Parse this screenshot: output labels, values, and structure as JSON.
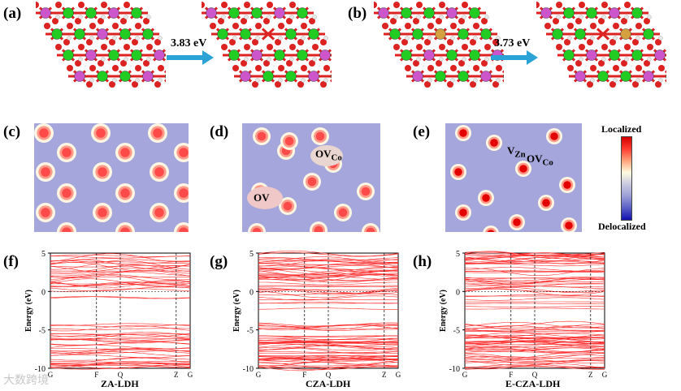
{
  "panels": {
    "a": "(a)",
    "b": "(b)",
    "c": "(c)",
    "d": "(d)",
    "e": "(e)",
    "f": "(f)",
    "g": "(g)",
    "h": "(h)"
  },
  "arrows": {
    "a_energy": "3.83 eV",
    "b_energy": "3.73 eV"
  },
  "elf": {
    "d_labels": [
      {
        "main": "OV",
        "sub": "Co"
      },
      {
        "main": "OV",
        "sub": ""
      }
    ],
    "e_labels": [
      {
        "main": "V",
        "sub": "Zn"
      },
      {
        "main": "OV",
        "sub": "Co"
      }
    ],
    "legend_top": "Localized",
    "legend_bottom": "Delocalized",
    "legend_colors": [
      "#d40000",
      "#ff3b30",
      "#ffa37a",
      "#fffbe0",
      "#c8c8e0",
      "#9a9ed6",
      "#5a5ec6",
      "#1010b0"
    ]
  },
  "bands": [
    {
      "caption": "ZA-LDH",
      "ylabel": "Energy (eV)",
      "ticks_y": [
        "5",
        "0",
        "-5",
        "-10"
      ],
      "ticks_x": [
        "G",
        "F",
        "Q",
        "Z",
        "G"
      ],
      "ylim": [
        -10,
        5
      ]
    },
    {
      "caption": "CZA-LDH",
      "ylabel": "Energy (eV)",
      "ticks_y": [
        "5",
        "0",
        "-5",
        "-10"
      ],
      "ticks_x": [
        "G",
        "F",
        "Q",
        "Z",
        "G"
      ],
      "ylim": [
        -10,
        5
      ]
    },
    {
      "caption": "E-CZA-LDH",
      "ylabel": "Energy (eV)",
      "ticks_y": [
        "5",
        "0",
        "-5",
        "-10"
      ],
      "ticks_x": [
        "G",
        "F",
        "Q",
        "Z",
        "G"
      ],
      "ylim": [
        -10,
        5
      ]
    }
  ],
  "watermark": "大数跨境",
  "colors": {
    "line": "#ff2a2a",
    "zn": "#22cc22",
    "al": "#cc55cc",
    "o": "#dd2222",
    "h": "#e8e8e8",
    "co": "#d4a040"
  }
}
